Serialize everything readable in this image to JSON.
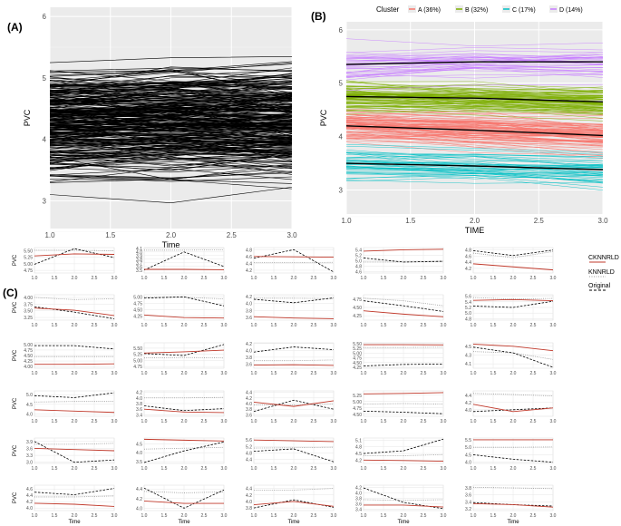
{
  "panels": {
    "a_label": "(A)",
    "b_label": "(B)",
    "c_label": "(C)"
  },
  "chart_data": [
    {
      "id": "A",
      "type": "line",
      "ylabel": "PVC",
      "xlabel": "Time",
      "x": [
        1.0,
        2.0,
        3.0
      ],
      "xticks": [
        "1.0",
        "1.5",
        "2.0",
        "2.5",
        "3.0"
      ],
      "yticks": [
        "3",
        "4",
        "5",
        "6"
      ],
      "ylim": [
        2.55,
        6.15
      ],
      "n_trajectories": 300,
      "trajectory_mean_range": [
        2.7,
        6.0
      ],
      "line_color": "#000000",
      "background": "#ebebeb",
      "grid": true
    },
    {
      "id": "B",
      "type": "line",
      "ylabel": "PVC",
      "xlabel": "TIME",
      "legend_title": "Cluster",
      "legend_position": "top",
      "x": [
        1.0,
        2.0,
        3.0
      ],
      "xticks": [
        "1.0",
        "1.5",
        "2.0",
        "2.5",
        "3.0"
      ],
      "yticks": [
        "3",
        "4",
        "5",
        "6"
      ],
      "ylim": [
        2.55,
        6.15
      ],
      "background": "#ebebeb",
      "grid": true,
      "series": [
        {
          "name": "A (36%)",
          "color": "#f8766d",
          "center": [
            4.2,
            4.12,
            4.02
          ]
        },
        {
          "name": "B (32%)",
          "color": "#7cae00",
          "center": [
            4.75,
            4.72,
            4.65
          ]
        },
        {
          "name": "C (17%)",
          "color": "#00bfc4",
          "center": [
            3.5,
            3.45,
            3.38
          ]
        },
        {
          "name": "D (14%)",
          "color": "#c77cff",
          "center": [
            5.35,
            5.4,
            5.4
          ]
        }
      ],
      "center_line_color": "#000000"
    },
    {
      "id": "C",
      "type": "line",
      "layout": "small multiples, 6 rows x 5 columns",
      "ylabel": "PVC",
      "xlabel": "Time",
      "x": [
        1.0,
        2.0,
        3.0
      ],
      "xticks": [
        "1.0",
        "1.5",
        "2.0",
        "2.5",
        "3.0"
      ],
      "legend_position": "right",
      "legend": [
        {
          "name": "CKNNRLD",
          "color": "#c0392b",
          "style": "solid"
        },
        {
          "name": "KNNRLD",
          "color": "#9a9a9a",
          "style": "dotted"
        },
        {
          "name": "Original",
          "color": "#000000",
          "style": "dashed"
        }
      ],
      "panels": [
        {
          "yticks": [
            "4.75",
            "5.00",
            "5.25",
            "5.50"
          ],
          "ylim": [
            4.65,
            5.62
          ],
          "ck": [
            5.3,
            5.38,
            5.36
          ],
          "kn": [
            5.52,
            5.52,
            5.5
          ],
          "og": [
            4.98,
            5.58,
            5.24
          ]
        },
        {
          "yticks": [
            "3.5",
            "3.6",
            "3.7",
            "3.8",
            "3.9",
            "4.0",
            "4.1"
          ],
          "ylim": [
            3.42,
            4.12
          ],
          "ck": [
            3.52,
            3.52,
            3.51
          ],
          "kn": [
            4.05,
            4.05,
            4.06
          ],
          "og": [
            3.5,
            4.0,
            3.6
          ]
        },
        {
          "yticks": [
            "4.2",
            "4.4",
            "4.6",
            "4.8"
          ],
          "ylim": [
            4.12,
            4.86
          ],
          "ck": [
            4.6,
            4.59,
            4.58
          ],
          "kn": [
            4.42,
            4.42,
            4.43
          ],
          "og": [
            4.55,
            4.8,
            4.15
          ]
        },
        {
          "yticks": [
            "4.6",
            "4.8",
            "5.0",
            "5.2",
            "5.4"
          ],
          "ylim": [
            4.55,
            5.48
          ],
          "ck": [
            5.35,
            5.4,
            5.42
          ],
          "kn": [
            4.95,
            4.95,
            4.96
          ],
          "og": [
            5.1,
            4.95,
            4.98
          ]
        },
        {
          "yticks": [
            "4.2",
            "4.4",
            "4.6",
            "4.8"
          ],
          "ylim": [
            4.05,
            4.88
          ],
          "ck": [
            4.35,
            4.25,
            4.15
          ],
          "kn": [
            4.7,
            4.55,
            4.75
          ],
          "og": [
            4.78,
            4.62,
            4.8
          ]
        },
        {
          "yticks": [
            "3.25",
            "3.50",
            "3.75",
            "4.00"
          ],
          "ylim": [
            3.15,
            4.1
          ],
          "ck": [
            3.6,
            3.52,
            3.32
          ],
          "kn": [
            4.0,
            3.92,
            3.95
          ],
          "og": [
            3.65,
            3.45,
            3.2
          ]
        },
        {
          "yticks": [
            "4.25",
            "4.50",
            "4.75",
            "5.00"
          ],
          "ylim": [
            4.1,
            5.08
          ],
          "ck": [
            4.3,
            4.2,
            4.18
          ],
          "kn": [
            4.98,
            4.98,
            4.92
          ],
          "og": [
            4.95,
            5.0,
            4.65
          ]
        },
        {
          "yticks": [
            "3.6",
            "3.8",
            "4.0",
            "4.2"
          ],
          "ylim": [
            3.52,
            4.25
          ],
          "ck": [
            3.62,
            3.58,
            3.56
          ],
          "kn": [
            4.15,
            4.15,
            4.14
          ],
          "og": [
            4.12,
            4.02,
            4.16
          ]
        },
        {
          "yticks": [
            "4.25",
            "4.50",
            "4.75"
          ],
          "ylim": [
            4.12,
            4.88
          ],
          "ck": [
            4.4,
            4.3,
            4.22
          ],
          "kn": [
            4.78,
            4.7,
            4.55
          ],
          "og": [
            4.7,
            4.55,
            4.38
          ]
        },
        {
          "yticks": [
            "4.8",
            "5.0",
            "5.2",
            "5.4",
            "5.6"
          ],
          "ylim": [
            4.75,
            5.65
          ],
          "ck": [
            5.45,
            5.48,
            5.44
          ],
          "kn": [
            5.55,
            5.5,
            5.52
          ],
          "og": [
            5.25,
            5.2,
            5.42
          ]
        },
        {
          "yticks": [
            "4.00",
            "4.25",
            "4.50",
            "4.75",
            "5.00"
          ],
          "ylim": [
            3.92,
            5.08
          ],
          "ck": [
            4.1,
            4.1,
            4.12
          ],
          "kn": [
            4.45,
            4.45,
            4.45
          ],
          "og": [
            4.95,
            4.95,
            4.8
          ]
        },
        {
          "yticks": [
            "4.75",
            "5.00",
            "5.25",
            "5.50"
          ],
          "ylim": [
            4.68,
            5.72
          ],
          "ck": [
            5.3,
            5.35,
            5.42
          ],
          "kn": [
            5.1,
            5.12,
            5.1
          ],
          "og": [
            5.28,
            5.2,
            5.65
          ]
        },
        {
          "yticks": [
            "3.6",
            "3.8",
            "4.0",
            "4.2"
          ],
          "ylim": [
            3.48,
            4.22
          ],
          "ck": [
            3.57,
            3.58,
            3.56
          ],
          "kn": [
            3.7,
            3.7,
            3.72
          ],
          "og": [
            3.95,
            4.1,
            4.02
          ]
        },
        {
          "yticks": [
            "4.25",
            "4.50",
            "4.75",
            "5.00",
            "5.25",
            "5.50"
          ],
          "ylim": [
            4.2,
            5.55
          ],
          "ck": [
            5.45,
            5.45,
            5.44
          ],
          "kn": [
            5.3,
            5.3,
            5.32
          ],
          "og": [
            4.32,
            4.4,
            4.42
          ]
        },
        {
          "yticks": [
            "4.1",
            "4.3",
            "4.5"
          ],
          "ylim": [
            4.0,
            4.58
          ],
          "ck": [
            4.55,
            4.5,
            4.4
          ],
          "kn": [
            4.38,
            4.35,
            4.2
          ],
          "og": [
            4.48,
            4.35,
            4.02
          ]
        },
        {
          "yticks": [
            "4.0",
            "4.5",
            "5.0"
          ],
          "ylim": [
            3.88,
            5.2
          ],
          "ck": [
            4.22,
            4.15,
            4.08
          ],
          "kn": [
            4.62,
            4.65,
            4.65
          ],
          "og": [
            4.95,
            4.85,
            5.1
          ]
        },
        {
          "yticks": [
            "3.4",
            "3.6",
            "3.8",
            "4.0",
            "4.2"
          ],
          "ylim": [
            3.35,
            4.25
          ],
          "ck": [
            3.6,
            3.5,
            3.48
          ],
          "kn": [
            4.0,
            4.0,
            4.02
          ],
          "og": [
            3.72,
            3.55,
            3.62
          ]
        },
        {
          "yticks": [
            "3.6",
            "3.8",
            "4.0",
            "4.2",
            "4.4"
          ],
          "ylim": [
            3.55,
            4.45
          ],
          "ck": [
            4.05,
            3.9,
            4.1
          ],
          "kn": [
            3.95,
            3.95,
            3.98
          ],
          "og": [
            3.72,
            4.12,
            3.8
          ]
        },
        {
          "yticks": [
            "4.50",
            "4.75",
            "5.00",
            "5.25"
          ],
          "ylim": [
            4.42,
            5.42
          ],
          "ck": [
            5.3,
            5.32,
            5.35
          ],
          "kn": [
            4.9,
            4.92,
            4.9
          ],
          "og": [
            4.62,
            4.58,
            4.52
          ]
        },
        {
          "yticks": [
            "4.0",
            "4.2",
            "4.4"
          ],
          "ylim": [
            3.82,
            4.52
          ],
          "ck": [
            4.15,
            3.95,
            4.05
          ],
          "kn": [
            4.45,
            4.42,
            4.38
          ],
          "og": [
            3.95,
            4.0,
            4.05
          ]
        },
        {
          "yticks": [
            "3.0",
            "3.3",
            "3.6",
            "3.9"
          ],
          "ylim": [
            2.95,
            4.05
          ],
          "ck": [
            3.6,
            3.55,
            3.5
          ],
          "kn": [
            3.78,
            3.78,
            3.82
          ],
          "og": [
            3.9,
            3.0,
            3.1
          ]
        },
        {
          "yticks": [
            "3.5",
            "4.0",
            "4.5"
          ],
          "ylim": [
            3.4,
            4.82
          ],
          "ck": [
            4.75,
            4.7,
            4.65
          ],
          "kn": [
            4.2,
            4.25,
            4.3
          ],
          "og": [
            3.45,
            4.1,
            4.6
          ]
        },
        {
          "yticks": [
            "4.4",
            "4.8",
            "5.2",
            "5.6"
          ],
          "ylim": [
            4.15,
            5.72
          ],
          "ck": [
            5.6,
            5.55,
            5.5
          ],
          "kn": [
            5.1,
            5.12,
            5.15
          ],
          "og": [
            4.9,
            5.05,
            4.25
          ]
        },
        {
          "yticks": [
            "4.2",
            "4.5",
            "4.8",
            "5.1"
          ],
          "ylim": [
            4.05,
            5.2
          ],
          "ck": [
            4.2,
            4.18,
            4.15
          ],
          "kn": [
            4.4,
            4.4,
            4.45
          ],
          "og": [
            4.5,
            4.62,
            5.15
          ]
        },
        {
          "yticks": [
            "4.0",
            "4.5",
            "5.0",
            "5.5"
          ],
          "ylim": [
            3.92,
            5.62
          ],
          "ck": [
            5.5,
            5.5,
            5.5
          ],
          "kn": [
            5.0,
            5.0,
            5.02
          ],
          "og": [
            4.5,
            4.2,
            4.0
          ]
        },
        {
          "yticks": [
            "4.0",
            "4.2",
            "4.4",
            "4.6"
          ],
          "ylim": [
            3.92,
            4.72
          ],
          "ck": [
            4.15,
            4.12,
            4.05
          ],
          "kn": [
            4.35,
            4.35,
            4.38
          ],
          "og": [
            4.5,
            4.42,
            4.62
          ]
        },
        {
          "yticks": [
            "4.0",
            "4.2",
            "4.4"
          ],
          "ylim": [
            3.95,
            4.48
          ],
          "ck": [
            4.15,
            4.1,
            4.1
          ],
          "kn": [
            4.35,
            4.32,
            4.34
          ],
          "og": [
            4.42,
            4.0,
            4.38
          ]
        },
        {
          "yticks": [
            "3.8",
            "4.0",
            "4.2",
            "4.4"
          ],
          "ylim": [
            3.72,
            4.5
          ],
          "ck": [
            3.9,
            4.0,
            3.85
          ],
          "kn": [
            4.35,
            4.35,
            4.4
          ],
          "og": [
            3.8,
            4.05,
            3.82
          ]
        },
        {
          "yticks": [
            "3.4",
            "3.6",
            "3.8",
            "4.0",
            "4.2"
          ],
          "ylim": [
            3.35,
            4.28
          ],
          "ck": [
            3.55,
            3.55,
            3.48
          ],
          "kn": [
            3.75,
            3.72,
            3.75
          ],
          "og": [
            4.18,
            3.65,
            3.42
          ]
        },
        {
          "yticks": [
            "3.2",
            "3.4",
            "3.6",
            "3.8"
          ],
          "ylim": [
            3.15,
            3.88
          ],
          "ck": [
            3.35,
            3.32,
            3.25
          ],
          "kn": [
            3.82,
            3.8,
            3.78
          ],
          "og": [
            3.38,
            3.32,
            3.28
          ]
        }
      ]
    }
  ]
}
